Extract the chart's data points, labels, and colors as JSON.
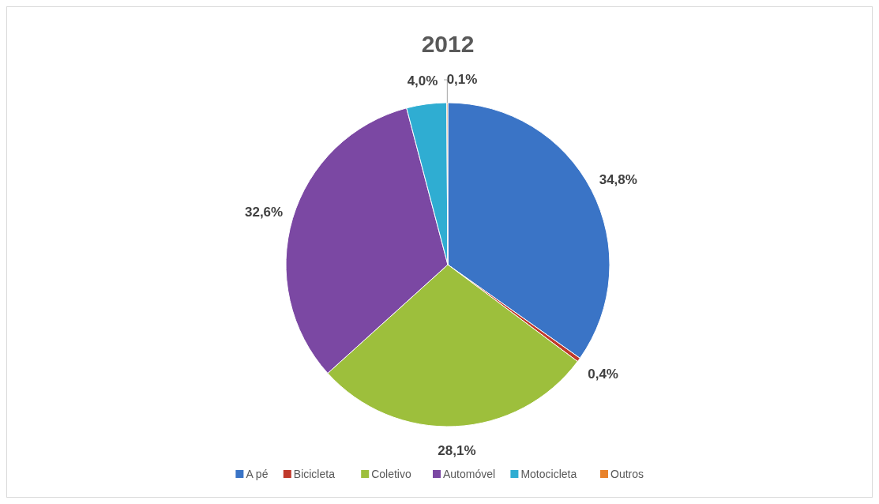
{
  "chart_data": {
    "type": "pie",
    "title": "2012",
    "categories": [
      "A pé",
      "Bicicleta",
      "Coletivo",
      "Automóvel",
      "Motocicleta",
      "Outros"
    ],
    "values": [
      34.8,
      0.4,
      28.1,
      32.6,
      4.0,
      0.1
    ],
    "colors": [
      "#3a74c6",
      "#c0392b",
      "#9dbf3c",
      "#7b48a3",
      "#2fadd2",
      "#e8822b"
    ],
    "value_labels": [
      "34,8%",
      "0,4%",
      "28,1%",
      "32,6%",
      "4,0%",
      "0,1%"
    ],
    "legend": "bottom"
  }
}
